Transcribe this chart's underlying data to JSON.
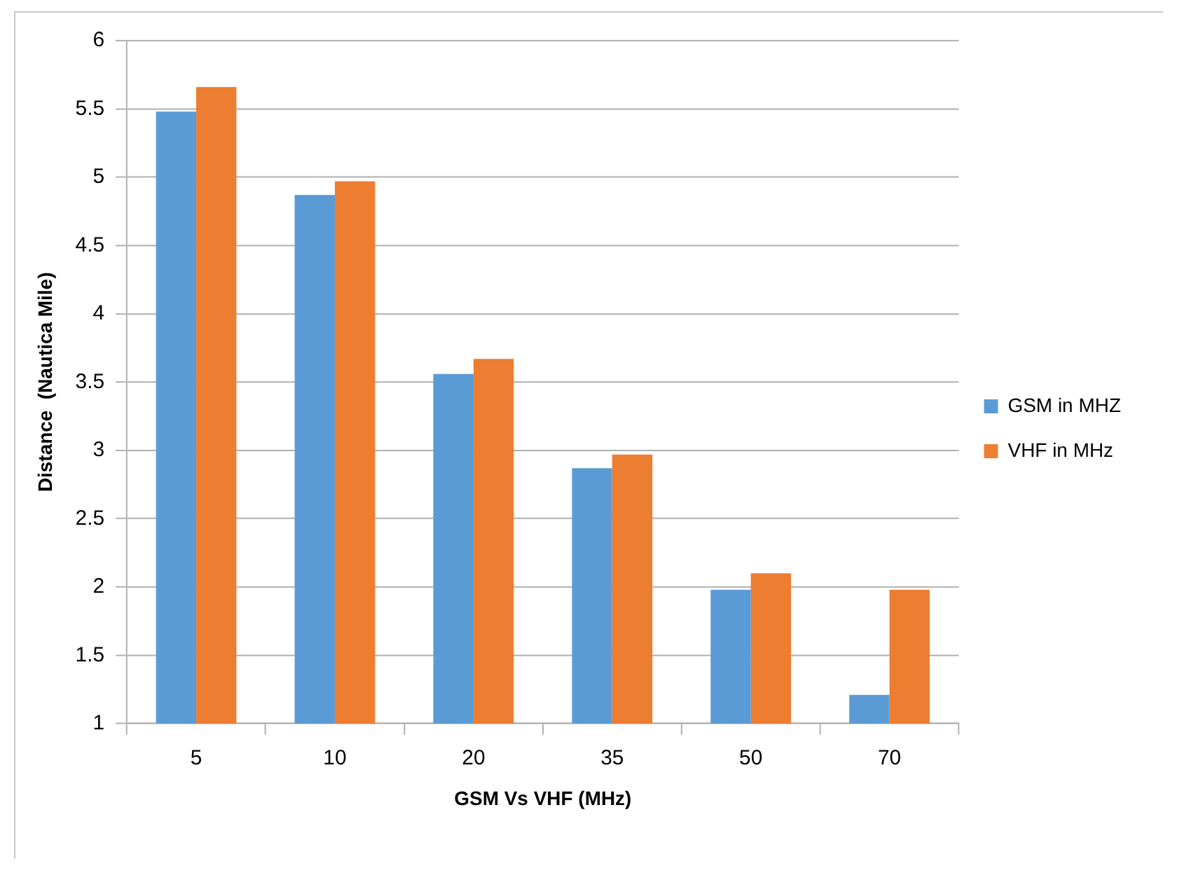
{
  "chart_data": {
    "type": "bar",
    "xlabel": "GSM Vs VHF (MHz)",
    "ylabel": "Distance  (Nautica Mile)",
    "categories": [
      "5",
      "10",
      "20",
      "35",
      "50",
      "70"
    ],
    "series": [
      {
        "name": "GSM in MHZ",
        "color": "#5b9bd5",
        "values": [
          5.48,
          4.87,
          3.56,
          2.87,
          1.98,
          1.21
        ]
      },
      {
        "name": "VHF in MHz",
        "color": "#ed7d31",
        "values": [
          5.66,
          4.97,
          3.67,
          2.97,
          2.1,
          1.98
        ]
      }
    ],
    "ylim": [
      1,
      6
    ],
    "yticks": [
      1,
      1.5,
      2,
      2.5,
      3,
      3.5,
      4,
      4.5,
      5,
      5.5,
      6
    ],
    "grid": "y",
    "legend": "right"
  }
}
